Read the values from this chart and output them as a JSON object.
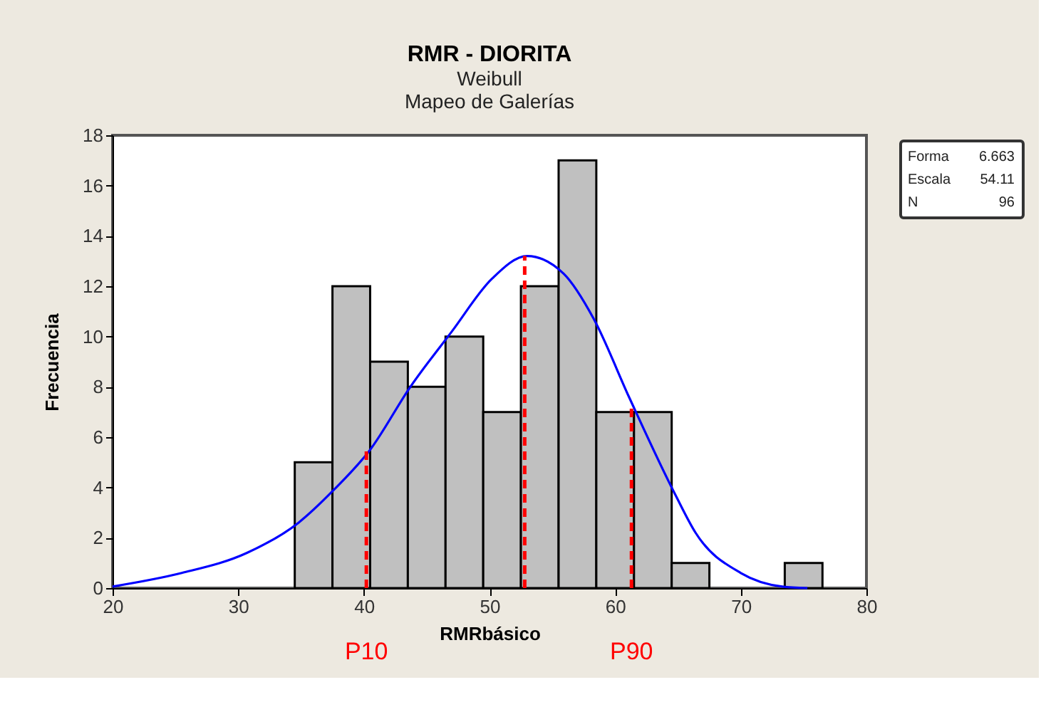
{
  "chart_data": {
    "type": "histogram",
    "title": "RMR - DIORITA",
    "subtitle": "Weibull\nMapeo de Galerías",
    "xlabel": "RMRbásico",
    "ylabel": "Frecuencia",
    "bins": [
      34.5,
      37.5,
      40.5,
      43.5,
      46.5,
      49.5,
      52.5,
      55.5,
      58.5,
      61.5,
      64.5,
      67.5,
      70.5,
      73.5,
      76.5
    ],
    "values": [
      5,
      12,
      9,
      8,
      10,
      7,
      12,
      17,
      7,
      7,
      1,
      0,
      0,
      1
    ],
    "color": "#c0c0c0",
    "series": [
      {
        "type": "line",
        "color": "#0000ff",
        "line_style": "solid",
        "x": [
          20,
          25.5,
          30.7,
          34.8,
          37.6,
          40.5,
          43.7,
          47,
          50.2,
          53,
          55.9,
          58.3,
          61.1,
          64.8,
          66.4,
          70,
          73.3,
          75.3
        ],
        "values": [
          0.06,
          0.6,
          1.4,
          2.6,
          3.9,
          5.5,
          8.0,
          10.2,
          12.3,
          13.2,
          12.5,
          10.7,
          7.6,
          3.7,
          2.2,
          0.6,
          0.06,
          0
        ]
      },
      {
        "type": "line",
        "color": "#ff0000",
        "line_style": "dashed",
        "x": [
          40.2,
          40.2
        ],
        "values": [
          0,
          5.6
        ]
      },
      {
        "type": "line",
        "color": "#ff0000",
        "line_style": "dashed",
        "x": [
          52.8,
          52.8
        ],
        "values": [
          0,
          13.2
        ]
      },
      {
        "type": "line",
        "color": "#ff0000",
        "line_style": "dashed",
        "x": [
          61.3,
          61.3
        ],
        "values": [
          0,
          7.3
        ]
      }
    ],
    "annotations": [
      "Forma",
      "6.663",
      "Escala",
      "54.11",
      "N",
      "96",
      {
        "text": "P10",
        "x": 40.2,
        "y": 0
      },
      {
        "text": "P90",
        "x": 61.3,
        "y": 0
      }
    ],
    "xlim": [
      20,
      80
    ],
    "ylim": [
      0,
      18
    ],
    "xticks": [
      20,
      30,
      40,
      50,
      60,
      70,
      80
    ],
    "yticks": [
      0,
      2,
      4,
      6,
      8,
      10,
      12,
      14,
      16,
      18
    ],
    "grid": false
  }
}
